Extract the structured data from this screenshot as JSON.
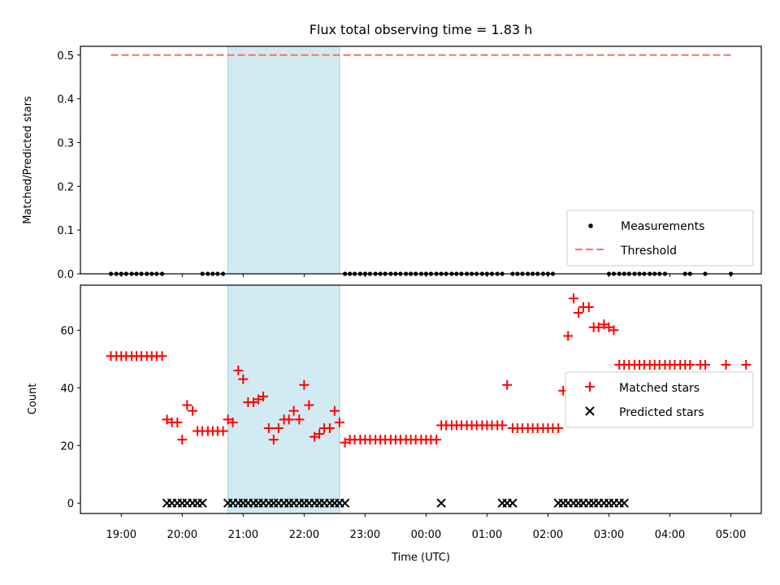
{
  "chart_data": [
    {
      "type": "scatter",
      "title": "Flux total observing time = 1.83 h",
      "ylabel": "Matched/Predicted stars",
      "xlabel": "",
      "ylim": [
        0,
        0.52
      ],
      "yticks": [
        "0.0",
        "0.1",
        "0.2",
        "0.3",
        "0.4",
        "0.5"
      ],
      "shaded_span_hours": [
        20.75,
        22.58
      ],
      "shade_color": "#add8e6",
      "threshold": {
        "label": "Threshold",
        "value": 0.5,
        "x_range_hours": [
          18.83,
          29.0
        ],
        "color": "#ff6b6b"
      },
      "series": [
        {
          "name": "Measurements",
          "marker": "dot",
          "color": "#000000",
          "x_hours": [
            18.83,
            18.92,
            19.0,
            19.08,
            19.17,
            19.25,
            19.33,
            19.42,
            19.5,
            19.58,
            19.67,
            20.33,
            20.42,
            20.5,
            20.58,
            20.67,
            22.67,
            22.75,
            22.83,
            22.92,
            23.0,
            23.08,
            23.17,
            23.25,
            23.33,
            23.42,
            23.5,
            23.58,
            23.67,
            23.75,
            23.83,
            23.92,
            24.0,
            24.08,
            24.17,
            24.25,
            24.33,
            24.42,
            24.5,
            24.58,
            24.67,
            24.75,
            24.83,
            24.92,
            25.0,
            25.08,
            25.17,
            25.25,
            25.42,
            25.5,
            25.58,
            25.67,
            25.75,
            25.83,
            25.92,
            26.0,
            26.08,
            27.0,
            27.08,
            27.17,
            27.25,
            27.33,
            27.42,
            27.5,
            27.58,
            27.67,
            27.75,
            27.83,
            27.92,
            28.25,
            28.33,
            28.58,
            29.0
          ],
          "y": 0
        }
      ],
      "legend": [
        "Measurements",
        "Threshold"
      ],
      "legend_position": "lower-right"
    },
    {
      "type": "scatter",
      "title": "",
      "xlabel": "Time (UTC)",
      "ylabel": "Count",
      "ylim": [
        -3.6,
        75.6
      ],
      "yticks": [
        "0",
        "20",
        "40",
        "60"
      ],
      "xlim_hours": [
        18.33,
        29.5
      ],
      "xticks": [
        "19:00",
        "20:00",
        "21:00",
        "22:00",
        "23:00",
        "00:00",
        "01:00",
        "02:00",
        "03:00",
        "04:00",
        "05:00"
      ],
      "shaded_span_hours": [
        20.75,
        22.58
      ],
      "series": [
        {
          "name": "Matched stars",
          "marker": "plus",
          "color": "#ff0000",
          "points": [
            [
              18.83,
              51
            ],
            [
              18.92,
              51
            ],
            [
              19.0,
              51
            ],
            [
              19.08,
              51
            ],
            [
              19.17,
              51
            ],
            [
              19.25,
              51
            ],
            [
              19.33,
              51
            ],
            [
              19.42,
              51
            ],
            [
              19.5,
              51
            ],
            [
              19.58,
              51
            ],
            [
              19.67,
              51
            ],
            [
              19.75,
              29
            ],
            [
              19.83,
              28
            ],
            [
              19.92,
              28
            ],
            [
              20.0,
              22
            ],
            [
              20.08,
              34
            ],
            [
              20.17,
              32
            ],
            [
              20.25,
              25
            ],
            [
              20.33,
              25
            ],
            [
              20.42,
              25
            ],
            [
              20.5,
              25
            ],
            [
              20.58,
              25
            ],
            [
              20.67,
              25
            ],
            [
              20.75,
              29
            ],
            [
              20.83,
              28
            ],
            [
              20.92,
              46
            ],
            [
              21.0,
              43
            ],
            [
              21.08,
              35
            ],
            [
              21.17,
              35
            ],
            [
              21.25,
              36
            ],
            [
              21.33,
              37
            ],
            [
              21.42,
              26
            ],
            [
              21.5,
              22
            ],
            [
              21.58,
              26
            ],
            [
              21.67,
              29
            ],
            [
              21.75,
              29
            ],
            [
              21.83,
              32
            ],
            [
              21.92,
              29
            ],
            [
              22.0,
              41
            ],
            [
              22.08,
              34
            ],
            [
              22.17,
              23
            ],
            [
              22.25,
              24
            ],
            [
              22.33,
              26
            ],
            [
              22.42,
              26
            ],
            [
              22.5,
              32
            ],
            [
              22.58,
              28
            ],
            [
              22.67,
              21
            ],
            [
              22.75,
              22
            ],
            [
              22.83,
              22
            ],
            [
              22.92,
              22
            ],
            [
              23.0,
              22
            ],
            [
              23.08,
              22
            ],
            [
              23.17,
              22
            ],
            [
              23.25,
              22
            ],
            [
              23.33,
              22
            ],
            [
              23.42,
              22
            ],
            [
              23.5,
              22
            ],
            [
              23.58,
              22
            ],
            [
              23.67,
              22
            ],
            [
              23.75,
              22
            ],
            [
              23.83,
              22
            ],
            [
              23.92,
              22
            ],
            [
              24.0,
              22
            ],
            [
              24.08,
              22
            ],
            [
              24.17,
              22
            ],
            [
              24.25,
              27
            ],
            [
              24.33,
              27
            ],
            [
              24.42,
              27
            ],
            [
              24.5,
              27
            ],
            [
              24.58,
              27
            ],
            [
              24.67,
              27
            ],
            [
              24.75,
              27
            ],
            [
              24.83,
              27
            ],
            [
              24.92,
              27
            ],
            [
              25.0,
              27
            ],
            [
              25.08,
              27
            ],
            [
              25.17,
              27
            ],
            [
              25.25,
              27
            ],
            [
              25.33,
              41
            ],
            [
              25.42,
              26
            ],
            [
              25.5,
              26
            ],
            [
              25.58,
              26
            ],
            [
              25.67,
              26
            ],
            [
              25.75,
              26
            ],
            [
              25.83,
              26
            ],
            [
              25.92,
              26
            ],
            [
              26.0,
              26
            ],
            [
              26.08,
              26
            ],
            [
              26.17,
              26
            ],
            [
              26.25,
              39
            ],
            [
              26.33,
              58
            ],
            [
              26.42,
              71
            ],
            [
              26.5,
              66
            ],
            [
              26.58,
              68
            ],
            [
              26.67,
              68
            ],
            [
              26.75,
              61
            ],
            [
              26.83,
              61
            ],
            [
              26.92,
              62
            ],
            [
              27.0,
              61
            ],
            [
              27.08,
              60
            ],
            [
              27.17,
              48
            ],
            [
              27.25,
              48
            ],
            [
              27.33,
              48
            ],
            [
              27.42,
              48
            ],
            [
              27.5,
              48
            ],
            [
              27.58,
              48
            ],
            [
              27.67,
              48
            ],
            [
              27.75,
              48
            ],
            [
              27.83,
              48
            ],
            [
              27.92,
              48
            ],
            [
              28.0,
              48
            ],
            [
              28.08,
              48
            ],
            [
              28.17,
              48
            ],
            [
              28.25,
              48
            ],
            [
              28.33,
              48
            ],
            [
              28.5,
              48
            ],
            [
              28.58,
              48
            ],
            [
              28.92,
              48
            ],
            [
              29.25,
              48
            ]
          ]
        },
        {
          "name": "Predicted stars",
          "marker": "x",
          "color": "#000000",
          "x_hours": [
            19.75,
            19.83,
            19.92,
            20.0,
            20.08,
            20.17,
            20.25,
            20.33,
            20.75,
            20.83,
            20.92,
            21.0,
            21.08,
            21.17,
            21.25,
            21.33,
            21.42,
            21.5,
            21.58,
            21.67,
            21.75,
            21.83,
            21.92,
            22.0,
            22.08,
            22.17,
            22.25,
            22.33,
            22.42,
            22.5,
            22.58,
            22.67,
            24.25,
            25.25,
            25.33,
            25.42,
            26.17,
            26.25,
            26.33,
            26.42,
            26.5,
            26.58,
            26.67,
            26.75,
            26.83,
            26.92,
            27.0,
            27.08,
            27.17,
            27.25
          ],
          "y": 0
        }
      ],
      "legend": [
        "Matched stars",
        "Predicted stars"
      ],
      "legend_position": "center-right"
    }
  ]
}
